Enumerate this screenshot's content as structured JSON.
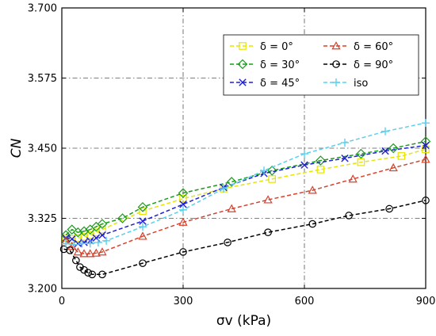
{
  "chart_data": {
    "type": "line",
    "xlabel": "σv (kPa)",
    "ylabel": "CN",
    "xlim": [
      0,
      900
    ],
    "ylim": [
      3.2,
      3.7
    ],
    "xticks": [
      0,
      300,
      600,
      900
    ],
    "xtick_labels": [
      "0",
      "300",
      "600",
      "900"
    ],
    "yticks": [
      3.2,
      3.325,
      3.45,
      3.575,
      3.7
    ],
    "ytick_labels": [
      "3.200",
      "3.325",
      "3.450",
      "3.575",
      "3.700"
    ],
    "grid": true,
    "legend_placement": "top-right",
    "series": [
      {
        "name": "δ = 0°",
        "color": "#e6e600",
        "marker": "square",
        "x": [
          10,
          25,
          40,
          55,
          70,
          85,
          100,
          200,
          300,
          400,
          520,
          640,
          740,
          840,
          900
        ],
        "y": [
          3.29,
          3.288,
          3.29,
          3.292,
          3.295,
          3.3,
          3.305,
          3.338,
          3.36,
          3.378,
          3.395,
          3.412,
          3.425,
          3.436,
          3.448
        ]
      },
      {
        "name": "δ = 30°",
        "color": "#1a9b1a",
        "marker": "diamond",
        "x": [
          10,
          25,
          40,
          55,
          70,
          85,
          100,
          150,
          200,
          300,
          420,
          520,
          640,
          740,
          820,
          900
        ],
        "y": [
          3.295,
          3.305,
          3.3,
          3.302,
          3.305,
          3.31,
          3.315,
          3.325,
          3.345,
          3.37,
          3.39,
          3.41,
          3.428,
          3.44,
          3.45,
          3.462
        ]
      },
      {
        "name": "δ = 45°",
        "color": "#1f1fd6",
        "marker": "x",
        "x": [
          10,
          25,
          40,
          55,
          70,
          85,
          100,
          200,
          300,
          400,
          500,
          600,
          700,
          800,
          900
        ],
        "y": [
          3.29,
          3.288,
          3.28,
          3.282,
          3.285,
          3.29,
          3.295,
          3.32,
          3.35,
          3.38,
          3.405,
          3.42,
          3.432,
          3.445,
          3.455
        ]
      },
      {
        "name": "δ = 60°",
        "color": "#d9412b",
        "marker": "triangle",
        "x": [
          10,
          25,
          40,
          55,
          70,
          85,
          100,
          200,
          300,
          420,
          510,
          620,
          720,
          820,
          900
        ],
        "y": [
          3.285,
          3.275,
          3.265,
          3.262,
          3.262,
          3.263,
          3.265,
          3.293,
          3.318,
          3.342,
          3.358,
          3.375,
          3.395,
          3.415,
          3.43
        ]
      },
      {
        "name": "δ = 90°",
        "color": "#000000",
        "marker": "circle",
        "x": [
          5,
          20,
          35,
          45,
          55,
          65,
          75,
          100,
          200,
          300,
          410,
          510,
          620,
          710,
          810,
          900
        ],
        "y": [
          3.27,
          3.268,
          3.25,
          3.238,
          3.233,
          3.228,
          3.225,
          3.225,
          3.245,
          3.265,
          3.282,
          3.3,
          3.315,
          3.33,
          3.342,
          3.357
        ]
      },
      {
        "name": "iso",
        "color": "#5ad0ee",
        "marker": "plus",
        "x": [
          10,
          30,
          50,
          70,
          90,
          110,
          200,
          300,
          400,
          500,
          600,
          700,
          800,
          900
        ],
        "y": [
          3.28,
          3.278,
          3.28,
          3.28,
          3.282,
          3.285,
          3.31,
          3.34,
          3.378,
          3.41,
          3.44,
          3.46,
          3.48,
          3.495
        ]
      }
    ]
  }
}
